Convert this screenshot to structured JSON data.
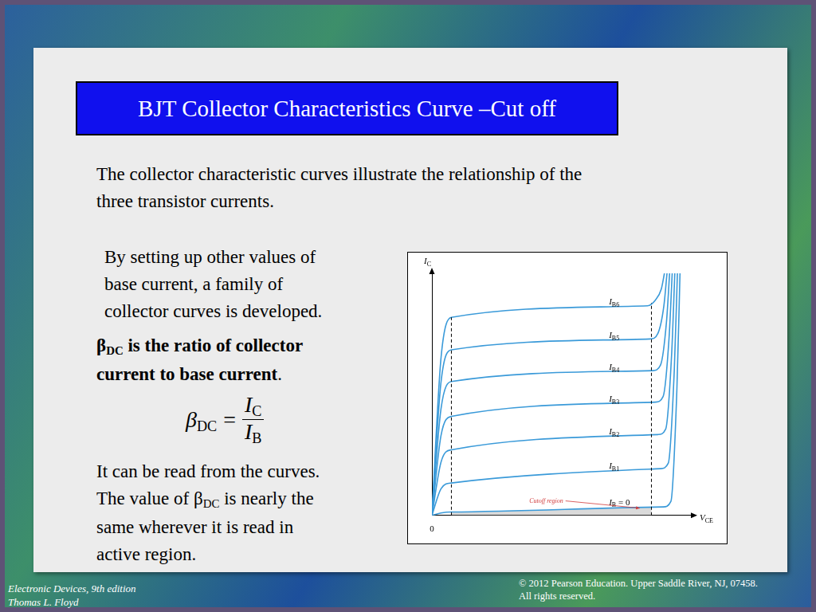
{
  "slide": {
    "title": "BJT Collector Characteristics Curve –Cut off",
    "paragraphs": [
      {
        "lines": [
          "The collector characteristic curves illustrate the relationship of the",
          "three transistor currents."
        ]
      },
      {
        "lines": [
          "By setting up other values of",
          "base current, a family of",
          "collector curves is developed."
        ]
      },
      {
        "lines": [
          [
            {
              "t": "β",
              "b": true
            },
            {
              "t": "DC",
              "sub": true,
              "b": true
            },
            {
              "t": " is the ratio of collector",
              "b": true
            }
          ],
          [
            {
              "t": "current to base current",
              "b": true
            },
            {
              "t": "."
            }
          ]
        ]
      },
      {
        "lines": [
          "It can be read from the curves.",
          [
            {
              "t": "The value of "
            },
            {
              "t": "β"
            },
            {
              "t": "DC",
              "sub": true
            },
            {
              "t": " is nearly the"
            }
          ],
          "same wherever it is read in",
          "active region."
        ]
      }
    ],
    "formula": {
      "lhs": [
        {
          "t": "β"
        },
        {
          "t": "DC",
          "sub": true
        }
      ],
      "relation": "=",
      "numerator": [
        {
          "t": "I"
        },
        {
          "t": "C",
          "sub": true
        }
      ],
      "denominator": [
        {
          "t": "I"
        },
        {
          "t": "B",
          "sub": true
        }
      ]
    }
  },
  "footer": {
    "left": [
      "Electronic Devices, 9th edition",
      "Thomas L. Floyd"
    ],
    "right": [
      "© 2012 Pearson Education. Upper Saddle River, NJ, 07458.",
      "All rights reserved."
    ]
  },
  "chart_data": {
    "type": "line",
    "x_label": "VCE",
    "y_label": "IC",
    "xlim": [
      0,
      10
    ],
    "ylim": [
      0,
      10
    ],
    "xticks": [
      0
    ],
    "tick_labels": "x",
    "grid": false,
    "color": "#3a9ad9",
    "series": [
      {
        "name": "IB6",
        "x": [
          0,
          0.35,
          0.75,
          8.3,
          8.6,
          8.83,
          8.95
        ],
        "values": [
          0,
          6.5,
          8.18,
          8.66,
          8.89,
          9.35,
          10
        ]
      },
      {
        "name": "IB5",
        "x": [
          0,
          0.35,
          0.75,
          8.4,
          8.7,
          8.93,
          9.05
        ],
        "values": [
          0,
          5.5,
          6.84,
          7.29,
          7.52,
          8.66,
          10
        ]
      },
      {
        "name": "IB4",
        "x": [
          0,
          0.35,
          0.75,
          8.5,
          8.8,
          9.03,
          9.15
        ],
        "values": [
          0,
          4.4,
          5.53,
          5.98,
          6.21,
          8.0,
          10
        ]
      },
      {
        "name": "IB3",
        "x": [
          0,
          0.35,
          0.75,
          8.6,
          8.9,
          9.13,
          9.25
        ],
        "values": [
          0,
          3.3,
          4.09,
          4.68,
          4.91,
          7.35,
          10
        ]
      },
      {
        "name": "IB2",
        "x": [
          0,
          0.35,
          0.75,
          8.7,
          9.0,
          9.23,
          9.35
        ],
        "values": [
          0,
          2.2,
          2.71,
          3.34,
          3.57,
          6.7,
          10
        ]
      },
      {
        "name": "IB1",
        "x": [
          0,
          0.35,
          0.75,
          8.8,
          9.1,
          9.33,
          9.45
        ],
        "values": [
          0,
          1.1,
          1.34,
          1.93,
          2.16,
          6.0,
          10
        ]
      },
      {
        "name": "IB = 0",
        "x": [
          0,
          0.35,
          0.75,
          8.9,
          9.2,
          9.43,
          9.55
        ],
        "values": [
          0,
          0.1,
          0.14,
          0.35,
          0.58,
          5.2,
          10
        ]
      }
    ],
    "vlines": [
      0.75,
      8.45
    ],
    "annotations": [
      {
        "text": "Cutoff region",
        "xy": [
          8.0,
          0.3
        ],
        "xytext": [
          4.4,
          0.6
        ]
      }
    ]
  }
}
